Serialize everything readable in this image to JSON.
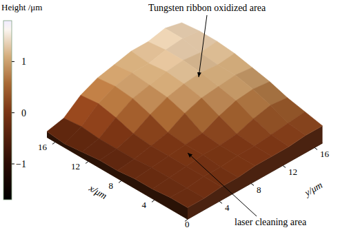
{
  "chart_data": {
    "type": "surface",
    "colorbar_title": "Height /μm",
    "x_label": "x/μm",
    "y_label": "y/μm",
    "annotations": [
      {
        "text": "Tungsten ribbon oxidized area"
      },
      {
        "text": "laser cleaning area"
      }
    ],
    "x": [
      0,
      2.125,
      4.25,
      6.375,
      8.5,
      10.625,
      12.75,
      14.875,
      17
    ],
    "y": [
      0,
      2.125,
      4.25,
      6.375,
      8.5,
      10.625,
      12.75,
      14.875,
      17
    ],
    "heights": [
      [
        -0.2,
        -0.2,
        -0.1,
        -0.1,
        0.0,
        0.0,
        0.0,
        0.1,
        0.1
      ],
      [
        -0.2,
        -0.2,
        -0.1,
        -0.1,
        0.0,
        0.0,
        0.1,
        0.2,
        0.3
      ],
      [
        -0.3,
        -0.2,
        -0.1,
        0.0,
        0.0,
        0.1,
        0.4,
        0.6,
        0.5
      ],
      [
        -0.3,
        -0.2,
        -0.1,
        0.0,
        0.1,
        0.5,
        0.8,
        0.9,
        0.8
      ],
      [
        -0.4,
        -0.3,
        -0.1,
        0.1,
        0.6,
        0.9,
        1.0,
        1.1,
        1.0
      ],
      [
        -0.4,
        -0.3,
        0.0,
        0.5,
        0.9,
        1.1,
        1.2,
        1.1,
        1.2
      ],
      [
        -0.5,
        -0.3,
        0.3,
        0.8,
        1.0,
        1.2,
        1.3,
        1.2,
        1.3
      ],
      [
        -0.6,
        -0.2,
        0.5,
        0.9,
        1.1,
        1.1,
        1.3,
        1.4,
        1.3
      ],
      [
        -0.5,
        -0.3,
        0.4,
        0.8,
        1.0,
        1.2,
        1.2,
        1.4,
        1.2
      ]
    ],
    "xlim": [
      0,
      17
    ],
    "ylim": [
      0,
      17
    ],
    "xticks": [
      0,
      4,
      8,
      12,
      16
    ],
    "yticks": [
      4,
      8,
      12,
      16
    ],
    "zlim": [
      -1.7,
      1.8
    ],
    "zticks": [
      {
        "value": -1,
        "label": "−1"
      },
      0,
      1
    ]
  }
}
